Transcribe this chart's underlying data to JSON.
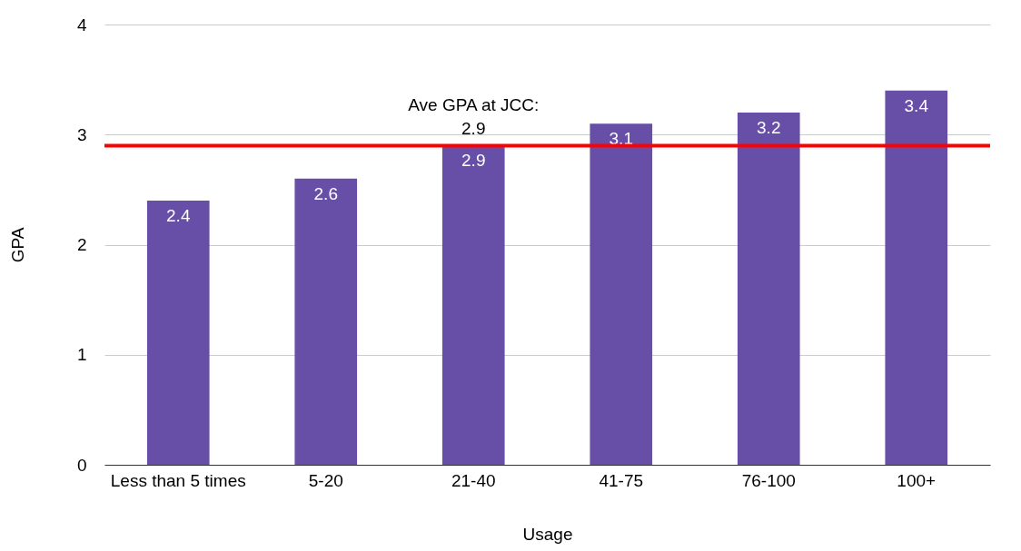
{
  "chart_data": {
    "type": "bar",
    "xlabel": "Usage",
    "ylabel": "GPA",
    "categories": [
      "Less than 5 times",
      "5-20",
      "21-40",
      "41-75",
      "76-100",
      "100+"
    ],
    "values": [
      2.4,
      2.6,
      2.9,
      3.1,
      3.2,
      3.4
    ],
    "color": "#674ea7",
    "ylim": [
      0,
      4
    ],
    "yticks": [
      0,
      1,
      2,
      3,
      4
    ],
    "grid": "y",
    "data_labels": true,
    "ref_lines": [
      {
        "axis": "y",
        "value": 2.9,
        "label": "Ave GPA at JCC:\n2.9",
        "color": "#ff0000"
      }
    ]
  }
}
